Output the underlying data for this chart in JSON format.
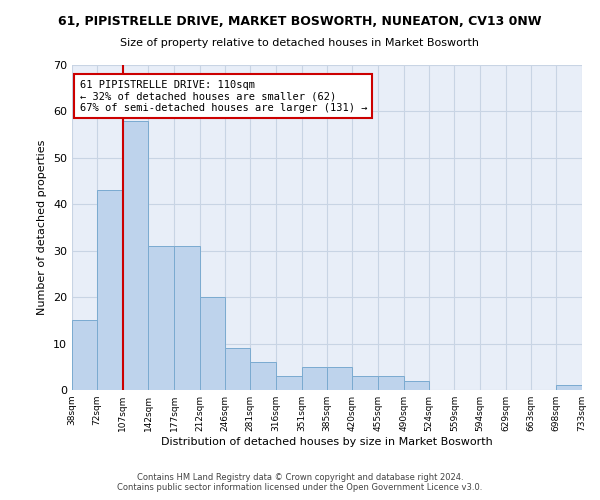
{
  "title": "61, PIPISTRELLE DRIVE, MARKET BOSWORTH, NUNEATON, CV13 0NW",
  "subtitle": "Size of property relative to detached houses in Market Bosworth",
  "xlabel": "Distribution of detached houses by size in Market Bosworth",
  "ylabel": "Number of detached properties",
  "footer_line1": "Contains HM Land Registry data © Crown copyright and database right 2024.",
  "footer_line2": "Contains public sector information licensed under the Open Government Licence v3.0.",
  "bar_color": "#bed3ec",
  "bar_edge_color": "#7aaad0",
  "grid_color": "#c8d4e4",
  "bg_color": "#e8eef8",
  "annotation_line1": "61 PIPISTRELLE DRIVE: 110sqm",
  "annotation_line2": "← 32% of detached houses are smaller (62)",
  "annotation_line3": "67% of semi-detached houses are larger (131) →",
  "annotation_box_color": "#ffffff",
  "annotation_box_edge": "#cc0000",
  "vline_x": 107,
  "vline_color": "#cc0000",
  "bins": [
    38,
    72,
    107,
    142,
    177,
    212,
    246,
    281,
    316,
    351,
    385,
    420,
    455,
    490,
    524,
    559,
    594,
    629,
    663,
    698,
    733
  ],
  "bin_labels": [
    "38sqm",
    "72sqm",
    "107sqm",
    "142sqm",
    "177sqm",
    "212sqm",
    "246sqm",
    "281sqm",
    "316sqm",
    "351sqm",
    "385sqm",
    "420sqm",
    "455sqm",
    "490sqm",
    "524sqm",
    "559sqm",
    "594sqm",
    "629sqm",
    "663sqm",
    "698sqm",
    "733sqm"
  ],
  "counts": [
    15,
    43,
    58,
    31,
    31,
    20,
    9,
    6,
    3,
    5,
    5,
    3,
    3,
    2,
    0,
    0,
    0,
    0,
    0,
    1
  ],
  "ylim": [
    0,
    70
  ],
  "yticks": [
    0,
    10,
    20,
    30,
    40,
    50,
    60,
    70
  ]
}
